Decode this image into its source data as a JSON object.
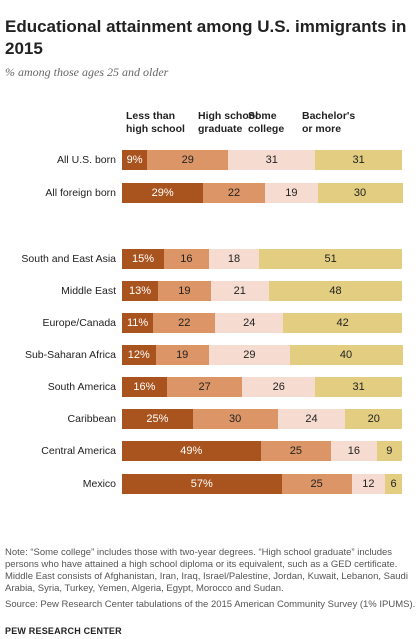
{
  "header": {
    "title": "Educational attainment among U.S. immigrants in 2015",
    "subtitle": "% among those ages 25 and older"
  },
  "colors": {
    "less_than_hs": "#a9541f",
    "hs_grad": "#dc9567",
    "some_college": "#f6dcd0",
    "bachelors": "#e2cd80"
  },
  "chart_data": {
    "type": "bar",
    "orientation": "horizontal",
    "stacked": true,
    "legend_placement": "top",
    "series": [
      {
        "name": "Less than high school",
        "display_name": [
          "Less than",
          "high school"
        ]
      },
      {
        "name": "High school graduate",
        "display_name": [
          "High school",
          "graduate"
        ]
      },
      {
        "name": "Some college",
        "display_name": [
          "Some",
          "college"
        ]
      },
      {
        "name": "Bachelor's or more",
        "display_name": [
          "Bachelor's",
          "or more"
        ]
      }
    ],
    "rows": [
      {
        "label": "All U.S. born",
        "values": [
          9,
          29,
          31,
          31
        ],
        "labels": [
          "9%",
          "29",
          "31",
          "31"
        ]
      },
      {
        "label": "All foreign born",
        "values": [
          29,
          22,
          19,
          30
        ],
        "labels": [
          "29%",
          "22",
          "19",
          "30"
        ]
      },
      {
        "label": "South and East Asia",
        "values": [
          15,
          16,
          18,
          51
        ],
        "labels": [
          "15%",
          "16",
          "18",
          "51"
        ]
      },
      {
        "label": "Middle East",
        "values": [
          13,
          19,
          21,
          48
        ],
        "labels": [
          "13%",
          "19",
          "21",
          "48"
        ]
      },
      {
        "label": "Europe/Canada",
        "values": [
          11,
          22,
          24,
          42
        ],
        "labels": [
          "11%",
          "22",
          "24",
          "42"
        ]
      },
      {
        "label": "Sub-Saharan Africa",
        "values": [
          12,
          19,
          29,
          40
        ],
        "labels": [
          "12%",
          "19",
          "29",
          "40"
        ]
      },
      {
        "label": "South America",
        "values": [
          16,
          27,
          26,
          31
        ],
        "labels": [
          "16%",
          "27",
          "26",
          "31"
        ]
      },
      {
        "label": "Caribbean",
        "values": [
          25,
          30,
          24,
          20
        ],
        "labels": [
          "25%",
          "30",
          "24",
          "20"
        ]
      },
      {
        "label": "Central America",
        "values": [
          49,
          25,
          16,
          9
        ],
        "labels": [
          "49%",
          "25",
          "16",
          "9"
        ]
      },
      {
        "label": "Mexico",
        "values": [
          57,
          25,
          12,
          6
        ],
        "labels": [
          "57%",
          "25",
          "12",
          "6"
        ]
      }
    ]
  },
  "footer": {
    "note": "Note: “Some college” includes those with two-year degrees. “High school graduate” includes persons who have attained a high school diploma or its equivalent, such as a GED certificate. Middle East consists of Afghanistan, Iran, Iraq, Israel/Palestine, Jordan, Kuwait, Lebanon, Saudi Arabia, Syria, Turkey, Yemen, Algeria, Egypt, Morocco and Sudan.",
    "source": "Source: Pew Research Center tabulations of the 2015 American Community Survey (1% IPUMS).",
    "brand": "PEW RESEARCH CENTER"
  }
}
